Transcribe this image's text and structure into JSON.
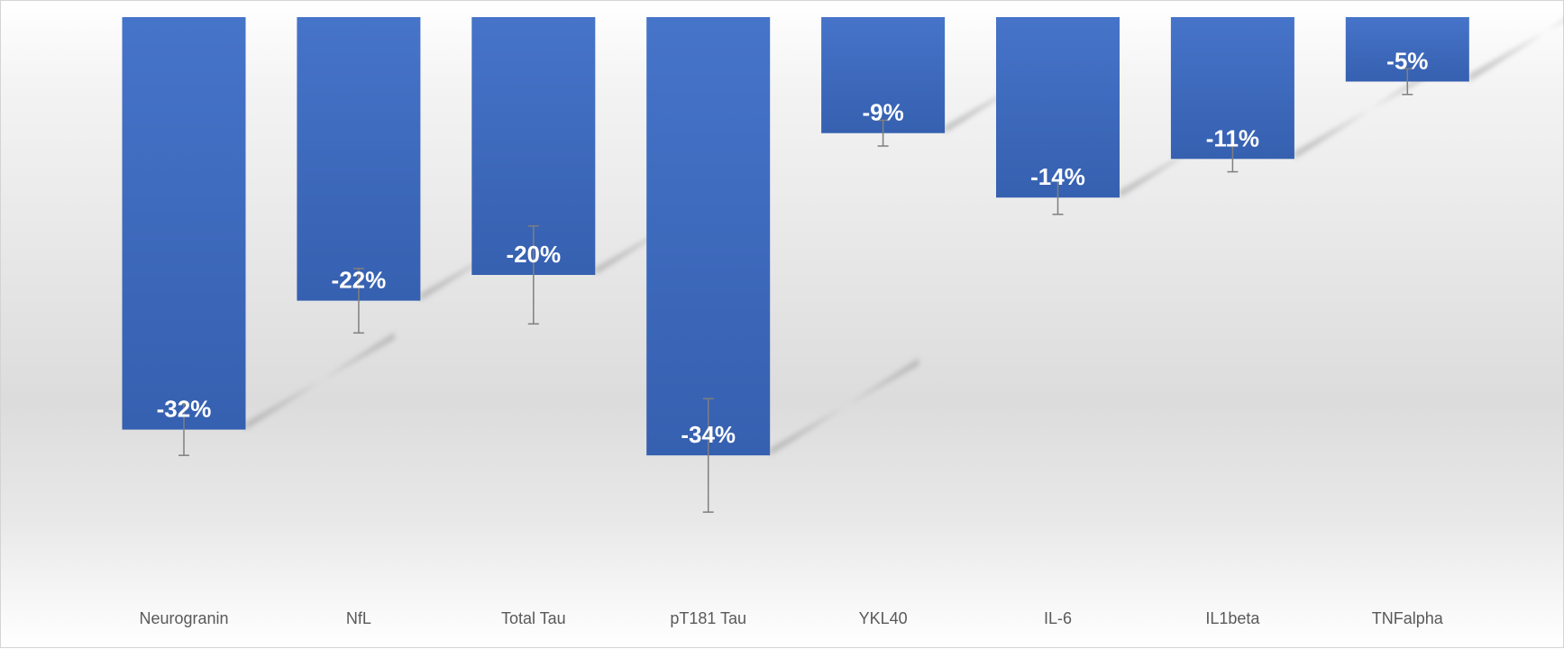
{
  "chart_data": {
    "type": "bar",
    "orientation": "vertical",
    "title": "",
    "xlabel": "",
    "ylabel": "",
    "categories": [
      "Neurogranin",
      "NfL",
      "Total Tau",
      "pT181 Tau",
      "YKL40",
      "IL-6",
      "IL1beta",
      "TNFalpha"
    ],
    "values": [
      -32,
      -22,
      -20,
      -34,
      -9,
      -14,
      -11,
      -5
    ],
    "data_labels": [
      "-32%",
      "-22%",
      "-20%",
      "-34%",
      "-9%",
      "-14%",
      "-11%",
      "-5%"
    ],
    "error_bars": [
      2,
      2.5,
      3.8,
      4.4,
      1,
      1.3,
      1,
      1
    ],
    "ylim": [
      -45,
      0
    ],
    "unit": "%",
    "grid": false,
    "legend": "none",
    "bar_color": "#4472C4",
    "error_bar_color": "#7f7f7f"
  }
}
